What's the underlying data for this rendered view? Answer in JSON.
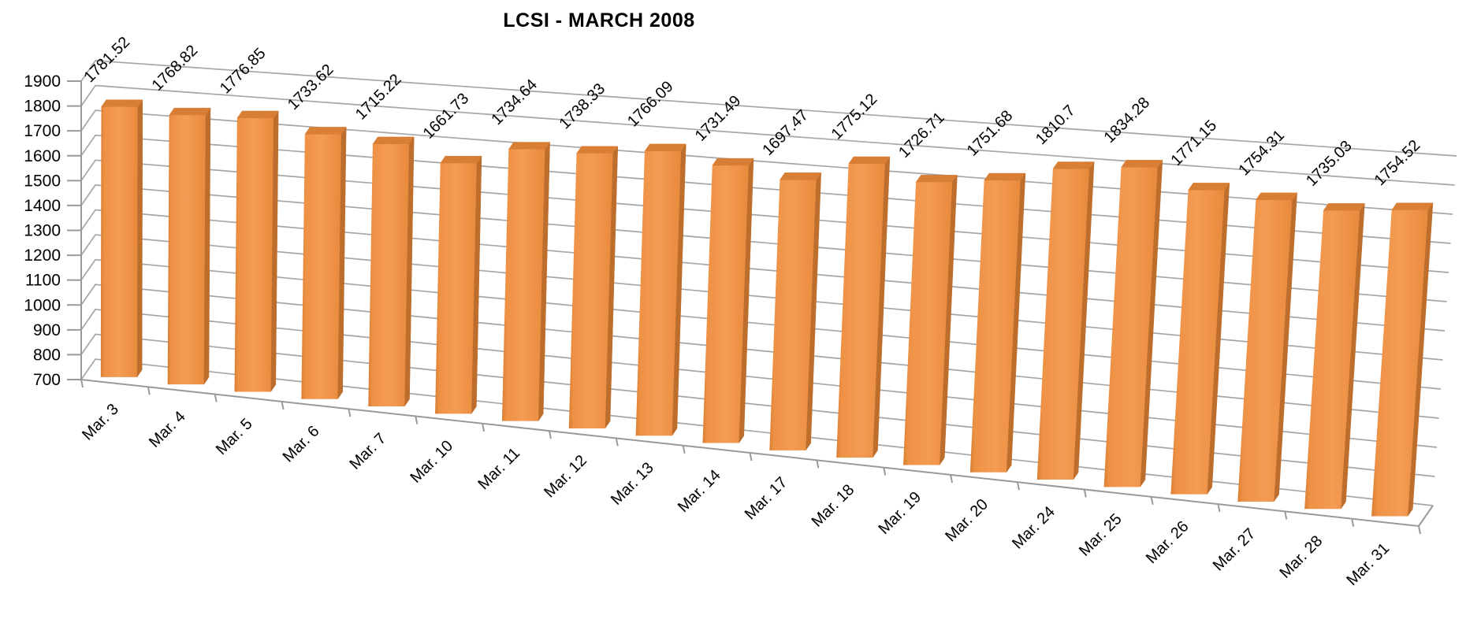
{
  "chart_data": {
    "type": "bar",
    "variant": "3d-column",
    "title": "LCSI - MARCH 2008",
    "xlabel": "",
    "ylabel": "",
    "categories": [
      "Mar. 3",
      "Mar. 4",
      "Mar. 5",
      "Mar. 6",
      "Mar. 7",
      "Mar. 10",
      "Mar. 11",
      "Mar. 12",
      "Mar. 13",
      "Mar. 14",
      "Mar. 17",
      "Mar. 18",
      "Mar. 19",
      "Mar. 20",
      "Mar. 24",
      "Mar. 25",
      "Mar. 26",
      "Mar. 27",
      "Mar. 28",
      "Mar. 31"
    ],
    "values": [
      1781.52,
      1768.82,
      1776.85,
      1733.62,
      1715.22,
      1661.73,
      1734.64,
      1738.33,
      1766.09,
      1731.49,
      1697.47,
      1775.12,
      1726.71,
      1751.68,
      1810.7,
      1834.28,
      1771.15,
      1754.31,
      1735.03,
      1754.52
    ],
    "data_labels": [
      "1781.52",
      "1768.82",
      "1776.85",
      "1733.62",
      "1715.22",
      "1661.73",
      "1734.64",
      "1738.33",
      "1766.09",
      "1731.49",
      "1697.47",
      "1775.12",
      "1726.71",
      "1751.68",
      "1810.7",
      "1834.28",
      "1771.15",
      "1754.31",
      "1735.03",
      "1754.52"
    ],
    "y_axis": {
      "min": 700,
      "max": 1900,
      "step": 100,
      "tick_labels": [
        "1900",
        "1800",
        "1700",
        "1600",
        "1500",
        "1400",
        "1300",
        "1200",
        "1100",
        "1000",
        "900",
        "800",
        "700"
      ]
    },
    "legend": "none",
    "grid": "on",
    "label_rotation_deg": -45,
    "colors": {
      "bar_front_light": "#F49C54",
      "bar_front_mid": "#EE9145",
      "bar_front_dark": "#D97E33",
      "bar_side": "#BE6E2C",
      "bar_top": "#D87E35",
      "gridline": "#A6A6A6",
      "axis": "#999999",
      "text": "#000000",
      "background": "#FFFFFF"
    }
  }
}
